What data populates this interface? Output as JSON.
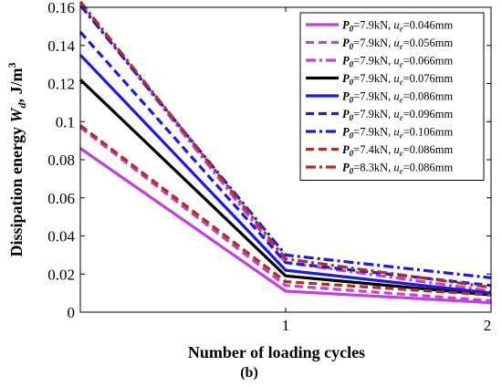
{
  "chart_data": {
    "type": "line",
    "xlabel": "Number of loading cycles",
    "ylabel": "Dissipation energy W_d, J/m^3",
    "ylabel_parts": {
      "pre": "Dissipation energy ",
      "sym": "W",
      "sub": "d",
      "post": ", J/m",
      "sup": "3"
    },
    "panel_label": "(b)",
    "xlim": [
      0,
      2
    ],
    "ylim": [
      0,
      0.16
    ],
    "xticks": [
      1,
      2
    ],
    "xtick_labels": [
      "1",
      "2"
    ],
    "yticks": [
      0,
      0.02,
      0.04,
      0.06,
      0.08,
      0.1,
      0.12,
      0.14,
      0.16
    ],
    "ytick_labels": [
      "0",
      "0.02",
      "0.04",
      "0.06",
      "0.08",
      "0.1",
      "0.12",
      "0.14",
      "0.16"
    ],
    "legend_position": "top-right",
    "grid": false,
    "x": [
      0,
      1,
      2
    ],
    "series": [
      {
        "name": "P0=7.9kN, ue=0.046mm",
        "p": "7.9kN",
        "u": "0.046mm",
        "values": [
          0.086,
          0.011,
          0.005
        ],
        "color": "#c040e0",
        "dash": "solid"
      },
      {
        "name": "P0=7.9kN, ue=0.056mm",
        "p": "7.9kN",
        "u": "0.056mm",
        "values": [
          0.097,
          0.014,
          0.006
        ],
        "color": "#c040e0",
        "dash": "dashed"
      },
      {
        "name": "P0=7.9kN, ue=0.066mm",
        "p": "7.9kN",
        "u": "0.066mm",
        "values": [
          0.162,
          0.026,
          0.011
        ],
        "color": "#c040e0",
        "dash": "dashdot"
      },
      {
        "name": "P0=7.9kN, ue=0.076mm",
        "p": "7.9kN",
        "u": "0.076mm",
        "values": [
          0.122,
          0.019,
          0.009
        ],
        "color": "#000000",
        "dash": "solid"
      },
      {
        "name": "P0=7.9kN, ue=0.086mm",
        "p": "7.9kN",
        "u": "0.086mm",
        "values": [
          0.135,
          0.022,
          0.01
        ],
        "color": "#1a1ae0",
        "dash": "solid"
      },
      {
        "name": "P0=7.9kN, ue=0.096mm",
        "p": "7.9kN",
        "u": "0.096mm",
        "values": [
          0.147,
          0.026,
          0.014
        ],
        "color": "#1a1ae0",
        "dash": "dashed"
      },
      {
        "name": "P0=7.9kN, ue=0.106mm",
        "p": "7.9kN",
        "u": "0.106mm",
        "values": [
          0.161,
          0.03,
          0.018
        ],
        "color": "#1a1ae0",
        "dash": "dashdot"
      },
      {
        "name": "P0=7.4kN, ue=0.086mm",
        "p": "7.4kN",
        "u": "0.086mm",
        "values": [
          0.098,
          0.016,
          0.009
        ],
        "color": "#b03020",
        "dash": "dashed"
      },
      {
        "name": "P0=8.3kN, ue=0.086mm",
        "p": "8.3kN",
        "u": "0.086mm",
        "values": [
          0.163,
          0.028,
          0.013
        ],
        "color": "#b03020",
        "dash": "dashdot"
      }
    ]
  }
}
